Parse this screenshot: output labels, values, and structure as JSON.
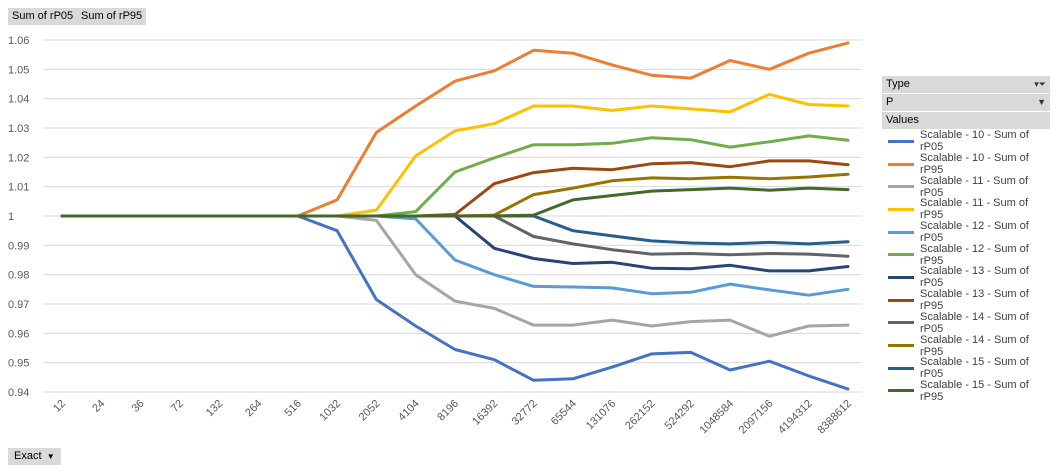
{
  "field_buttons": [
    "Sum of rP05",
    "Sum of rP95"
  ],
  "legend": {
    "type_label": "Type",
    "p_label": "P",
    "values_label": "Values"
  },
  "filter_button": "Exact",
  "chart_data": {
    "type": "line",
    "title": "",
    "xlabel": "",
    "ylabel": "",
    "categories": [
      "12",
      "24",
      "36",
      "72",
      "132",
      "264",
      "516",
      "1032",
      "2052",
      "4104",
      "8196",
      "16392",
      "32772",
      "65544",
      "131076",
      "262152",
      "524292",
      "1048584",
      "2097156",
      "4194312",
      "8388612"
    ],
    "ylim": [
      0.94,
      1.06
    ],
    "yticks": [
      0.94,
      0.95,
      0.96,
      0.97,
      0.98,
      0.99,
      1,
      1.01,
      1.02,
      1.03,
      1.04,
      1.05,
      1.06
    ],
    "grid": true,
    "legend_position": "right",
    "series": [
      {
        "name": "Scalable - 10 - Sum of rP05",
        "color": "#4472c4",
        "values": [
          1,
          1,
          1,
          1,
          1,
          1,
          1,
          0.995,
          0.9715,
          0.9625,
          0.9545,
          0.951,
          0.944,
          0.9445,
          0.9485,
          0.953,
          0.9535,
          0.9475,
          0.9505,
          0.9455,
          0.941
        ]
      },
      {
        "name": "Scalable - 10 - Sum of rP95",
        "color": "#ed7d31",
        "values": [
          1,
          1,
          1,
          1,
          1,
          1,
          1,
          1.0055,
          1.0285,
          1.0375,
          1.046,
          1.0495,
          1.0565,
          1.0555,
          1.0515,
          1.048,
          1.047,
          1.053,
          1.05,
          1.0555,
          1.059
        ]
      },
      {
        "name": "Scalable - 11 - Sum of rP05",
        "color": "#a5a5a5",
        "values": [
          1,
          1,
          1,
          1,
          1,
          1,
          1,
          1,
          0.9985,
          0.98,
          0.971,
          0.9685,
          0.9628,
          0.9628,
          0.9645,
          0.9625,
          0.964,
          0.9645,
          0.959,
          0.9625,
          0.9628
        ]
      },
      {
        "name": "Scalable - 11 - Sum of rP95",
        "color": "#ffc000",
        "values": [
          1,
          1,
          1,
          1,
          1,
          1,
          1,
          1,
          1.002,
          1.0205,
          1.029,
          1.0315,
          1.0375,
          1.0375,
          1.036,
          1.0375,
          1.0365,
          1.0355,
          1.0415,
          1.038,
          1.0375
        ]
      },
      {
        "name": "Scalable - 12 - Sum of rP05",
        "color": "#5b9bd5",
        "values": [
          1,
          1,
          1,
          1,
          1,
          1,
          1,
          1,
          1,
          0.999,
          0.985,
          0.98,
          0.976,
          0.9758,
          0.9755,
          0.9735,
          0.974,
          0.9768,
          0.9748,
          0.973,
          0.975
        ]
      },
      {
        "name": "Scalable - 12 - Sum of rP95",
        "color": "#70ad47",
        "values": [
          1,
          1,
          1,
          1,
          1,
          1,
          1,
          1,
          1,
          1.0015,
          1.015,
          1.0198,
          1.0243,
          1.0243,
          1.0248,
          1.0267,
          1.026,
          1.0235,
          1.0253,
          1.0273,
          1.0258
        ]
      },
      {
        "name": "Scalable - 13 - Sum of rP05",
        "color": "#264478",
        "values": [
          1,
          1,
          1,
          1,
          1,
          1,
          1,
          1,
          1,
          1,
          1,
          0.989,
          0.9855,
          0.9838,
          0.9842,
          0.9822,
          0.982,
          0.9832,
          0.9813,
          0.9813,
          0.9828
        ]
      },
      {
        "name": "Scalable - 13 - Sum of rP95",
        "color": "#9e480e",
        "values": [
          1,
          1,
          1,
          1,
          1,
          1,
          1,
          1,
          1,
          1,
          1.0005,
          1.011,
          1.0148,
          1.0163,
          1.0158,
          1.0178,
          1.0182,
          1.0168,
          1.0188,
          1.0188,
          1.0175
        ]
      },
      {
        "name": "Scalable - 14 - Sum of rP05",
        "color": "#636363",
        "values": [
          1,
          1,
          1,
          1,
          1,
          1,
          1,
          1,
          1,
          1,
          1,
          1,
          0.993,
          0.9905,
          0.9885,
          0.987,
          0.9872,
          0.9868,
          0.9872,
          0.987,
          0.9863
        ]
      },
      {
        "name": "Scalable - 14 - Sum of rP95",
        "color": "#997300",
        "values": [
          1,
          1,
          1,
          1,
          1,
          1,
          1,
          1,
          1,
          1,
          1,
          1.0003,
          1.0073,
          1.0095,
          1.012,
          1.013,
          1.0127,
          1.0132,
          1.0127,
          1.0133,
          1.0142
        ]
      },
      {
        "name": "Scalable - 15 - Sum of rP05",
        "color": "#255e91",
        "values": [
          1,
          1,
          1,
          1,
          1,
          1,
          1,
          1,
          1,
          1,
          1,
          1,
          1,
          0.995,
          0.9932,
          0.9915,
          0.9908,
          0.9905,
          0.991,
          0.9905,
          0.9912
        ]
      },
      {
        "name": "Scalable - 15 - Sum of rP95",
        "color": "#43682b",
        "values": [
          1,
          1,
          1,
          1,
          1,
          1,
          1,
          1,
          1,
          1,
          1,
          1,
          1.0003,
          1.0055,
          1.007,
          1.0085,
          1.009,
          1.0095,
          1.0088,
          1.0095,
          1.009
        ]
      }
    ]
  }
}
